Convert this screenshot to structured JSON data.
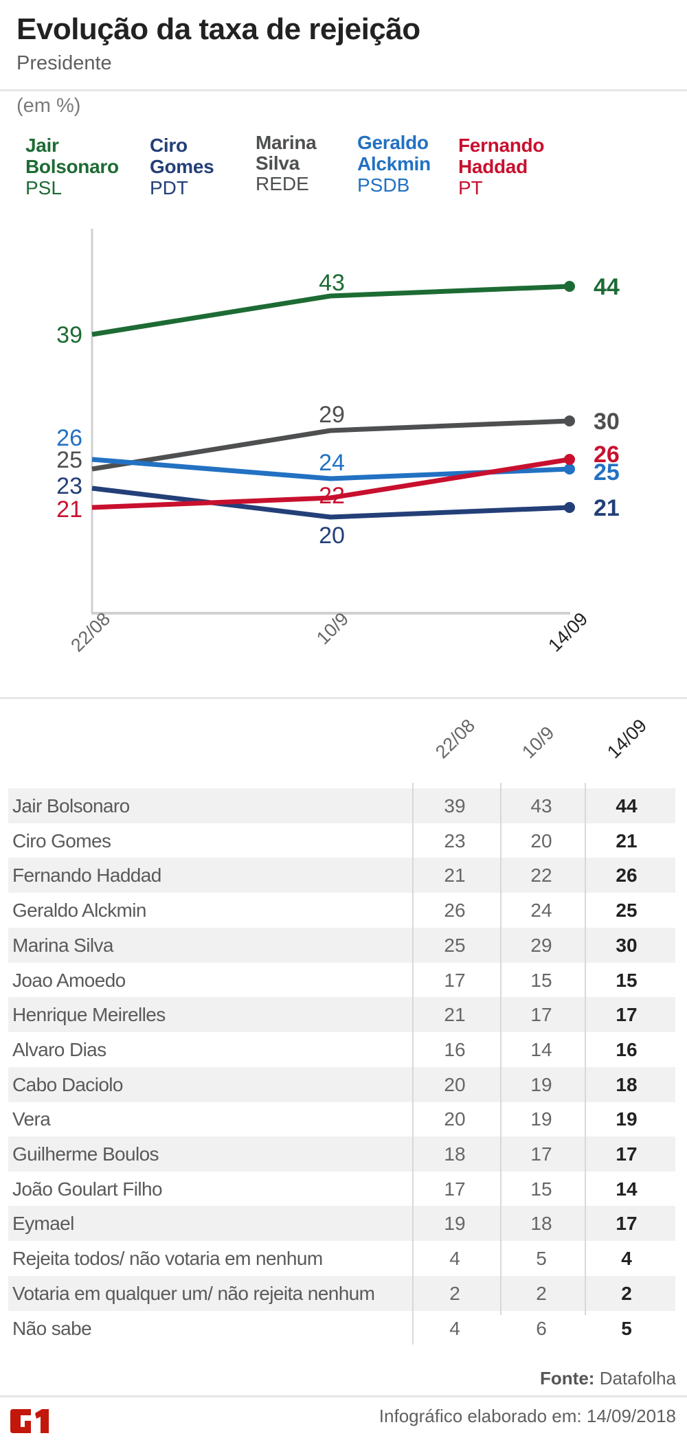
{
  "header": {
    "title": "Evolução da taxa de rejeição",
    "subtitle": "Presidente",
    "unit": "(em %)"
  },
  "legend": [
    {
      "name_line1": "Jair",
      "name_line2": "Bolsonaro",
      "party": "PSL",
      "color": "#1d6b34"
    },
    {
      "name_line1": "Ciro",
      "name_line2": "Gomes",
      "party": "PDT",
      "color": "#233f78"
    },
    {
      "name_line1": "Marina",
      "name_line2": "Silva",
      "party": "REDE",
      "color": "#4d4f50"
    },
    {
      "name_line1": "Geraldo",
      "name_line2": "Alckmin",
      "party": "PSDB",
      "color": "#2271c2"
    },
    {
      "name_line1": "Fernando",
      "name_line2": "Haddad",
      "party": "PT",
      "color": "#c8102e"
    }
  ],
  "chart_data": {
    "type": "line",
    "title": "Evolução da taxa de rejeição",
    "subtitle": "Presidente",
    "ylabel": "(em %)",
    "xlabel": "",
    "x": [
      "22/08",
      "10/9",
      "14/09"
    ],
    "ylim": [
      0,
      47
    ],
    "grid": false,
    "legend_position": "top",
    "series": [
      {
        "name": "Jair Bolsonaro",
        "party": "PSL",
        "color": "#1d6b34",
        "values": [
          39,
          43,
          44
        ]
      },
      {
        "name": "Marina Silva",
        "party": "REDE",
        "color": "#4d4f50",
        "values": [
          25,
          29,
          30
        ]
      },
      {
        "name": "Geraldo Alckmin",
        "party": "PSDB",
        "color": "#2271c2",
        "values": [
          26,
          24,
          25
        ]
      },
      {
        "name": "Ciro Gomes",
        "party": "PDT",
        "color": "#233f78",
        "values": [
          23,
          20,
          21
        ]
      },
      {
        "name": "Fernando Haddad",
        "party": "PT",
        "color": "#c8102e",
        "values": [
          21,
          22,
          26
        ]
      }
    ]
  },
  "table": {
    "columns": [
      "22/08",
      "10/9",
      "14/09"
    ],
    "rows": [
      {
        "label": "Jair Bolsonaro",
        "values": [
          "39",
          "43",
          "44"
        ]
      },
      {
        "label": "Ciro Gomes",
        "values": [
          "23",
          "20",
          "21"
        ]
      },
      {
        "label": "Fernando Haddad",
        "values": [
          "21",
          "22",
          "26"
        ]
      },
      {
        "label": "Geraldo Alckmin",
        "values": [
          "26",
          "24",
          "25"
        ]
      },
      {
        "label": "Marina Silva",
        "values": [
          "25",
          "29",
          "30"
        ]
      },
      {
        "label": "Joao Amoedo",
        "values": [
          "17",
          "15",
          "15"
        ]
      },
      {
        "label": "Henrique Meirelles",
        "values": [
          "21",
          "17",
          "17"
        ]
      },
      {
        "label": "Alvaro Dias",
        "values": [
          "16",
          "14",
          "16"
        ]
      },
      {
        "label": "Cabo Daciolo",
        "values": [
          "20",
          "19",
          "18"
        ]
      },
      {
        "label": "Vera",
        "values": [
          "20",
          "19",
          "19"
        ]
      },
      {
        "label": "Guilherme Boulos",
        "values": [
          "18",
          "17",
          "17"
        ]
      },
      {
        "label": "João Goulart Filho",
        "values": [
          "17",
          "15",
          "14"
        ]
      },
      {
        "label": "Eymael",
        "values": [
          "19",
          "18",
          "17"
        ]
      },
      {
        "label": "Rejeita todos/ não votaria em nenhum",
        "values": [
          "4",
          "5",
          "4"
        ]
      },
      {
        "label": "Votaria em qualquer um/ não rejeita nenhum",
        "values": [
          "2",
          "2",
          "2"
        ]
      },
      {
        "label": "Não sabe",
        "values": [
          "4",
          "6",
          "5"
        ]
      }
    ]
  },
  "footer": {
    "source_label": "Fonte:",
    "source_value": "Datafolha",
    "made_label": "Infográfico elaborado em: 14/09/2018",
    "logo": "G1",
    "logo_color": "#c4170c"
  }
}
